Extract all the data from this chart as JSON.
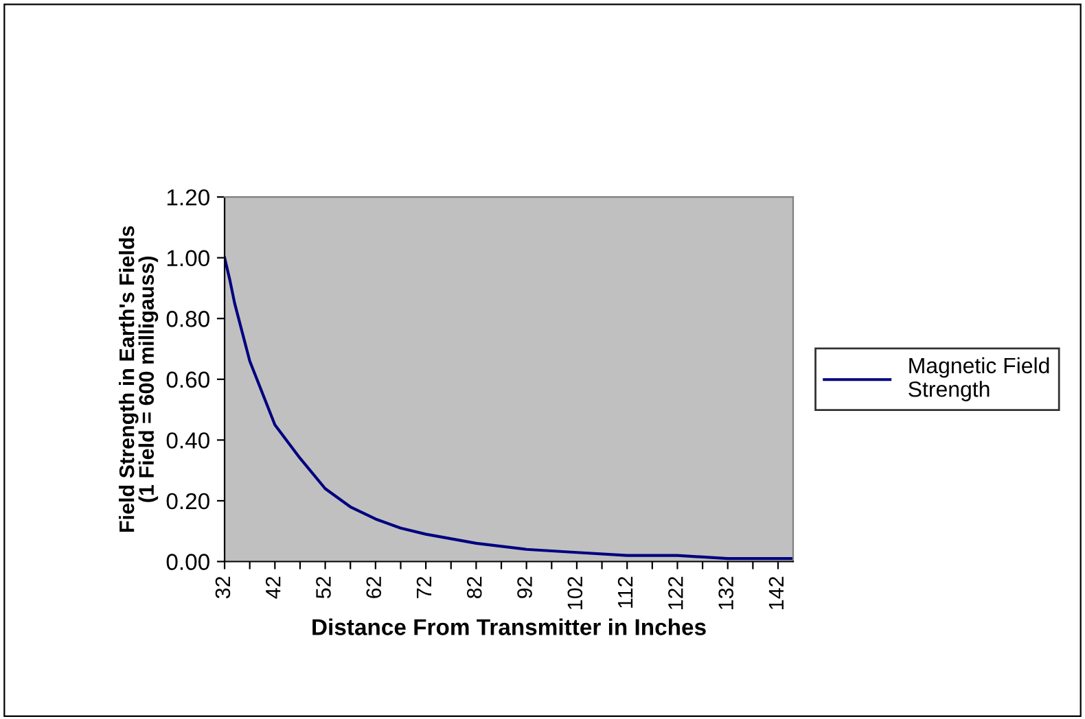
{
  "chart_data": {
    "type": "line",
    "xlabel": "Distance From Transmitter in Inches",
    "ylabel": "Field Strength in Earth's Fields\n(1 Field = 600 milligauss)",
    "series": [
      {
        "name": "Magnetic Field Strength",
        "color": "#000080",
        "x": [
          32,
          33,
          34,
          37,
          42,
          47,
          52,
          57,
          62,
          67,
          72,
          82,
          92,
          102,
          112,
          122,
          132,
          142,
          145
        ],
        "values": [
          1.0,
          0.93,
          0.85,
          0.66,
          0.45,
          0.34,
          0.24,
          0.18,
          0.14,
          0.11,
          0.09,
          0.06,
          0.04,
          0.03,
          0.02,
          0.02,
          0.01,
          0.01,
          0.01
        ]
      }
    ],
    "xlim": [
      32,
      145
    ],
    "xticks": [
      32,
      {
        "value": 37,
        "label": null
      },
      42,
      {
        "value": 47,
        "label": null
      },
      52,
      {
        "value": 57,
        "label": null
      },
      62,
      {
        "value": 67,
        "label": null
      },
      72,
      {
        "value": 77,
        "label": null
      },
      82,
      {
        "value": 87,
        "label": null
      },
      92,
      {
        "value": 97,
        "label": null
      },
      102,
      {
        "value": 107,
        "label": null
      },
      112,
      {
        "value": 117,
        "label": null
      },
      122,
      {
        "value": 127,
        "label": null
      },
      132,
      {
        "value": 137,
        "label": null
      },
      142
    ],
    "ylim": [
      0,
      1.2
    ],
    "yticks": [
      {
        "value": 0,
        "label": "0.00"
      },
      {
        "value": 0.2,
        "label": "0.20"
      },
      {
        "value": 0.4,
        "label": "0.40"
      },
      {
        "value": 0.6,
        "label": "0.60"
      },
      {
        "value": 0.8,
        "label": "0.80"
      },
      {
        "value": 1.0,
        "label": "1.00"
      },
      {
        "value": 1.2,
        "label": "1.20"
      }
    ],
    "grid": false,
    "legend": "right",
    "line_style": "solid",
    "marker": "none"
  }
}
